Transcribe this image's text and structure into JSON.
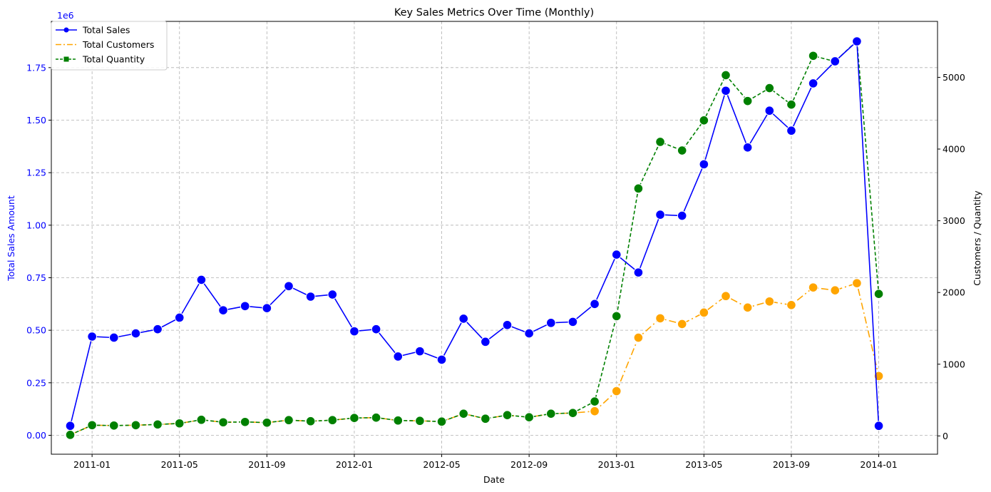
{
  "chart_data": {
    "type": "line",
    "title": "Key Sales Metrics Over Time (Monthly)",
    "xlabel": "Date",
    "ylabel_left": "Total Sales Amount",
    "ylabel_right": "Customers / Quantity",
    "left_scale_label": "1e6",
    "grid": true,
    "legend_position": "top-left",
    "x_ticks": [
      "2011-01",
      "2011-05",
      "2011-09",
      "2012-01",
      "2012-05",
      "2012-09",
      "2013-01",
      "2013-05",
      "2013-09",
      "2014-01"
    ],
    "y_left_ticks": [
      "0.00",
      "0.25",
      "0.50",
      "0.75",
      "1.00",
      "1.25",
      "1.50",
      "1.75"
    ],
    "y_left_tick_values": [
      0,
      0.25,
      0.5,
      0.75,
      1.0,
      1.25,
      1.5,
      1.75
    ],
    "y_right_ticks": [
      "0",
      "1000",
      "2000",
      "3000",
      "4000",
      "5000"
    ],
    "y_right_tick_values": [
      0,
      1000,
      2000,
      3000,
      4000,
      5000
    ],
    "ylim_left": [
      -0.09,
      1.97
    ],
    "ylim_right": [
      -255,
      5780
    ],
    "x": [
      "2010-12",
      "2011-01",
      "2011-02",
      "2011-03",
      "2011-04",
      "2011-05",
      "2011-06",
      "2011-07",
      "2011-08",
      "2011-09",
      "2011-10",
      "2011-11",
      "2011-12",
      "2012-01",
      "2012-02",
      "2012-03",
      "2012-04",
      "2012-05",
      "2012-06",
      "2012-07",
      "2012-08",
      "2012-09",
      "2012-10",
      "2012-11",
      "2012-12",
      "2013-01",
      "2013-02",
      "2013-03",
      "2013-04",
      "2013-05",
      "2013-06",
      "2013-07",
      "2013-08",
      "2013-09",
      "2013-10",
      "2013-11",
      "2013-12",
      "2014-01"
    ],
    "series": [
      {
        "name": "Total Sales",
        "axis": "left",
        "color": "#0000ff",
        "linestyle": "solid",
        "marker": "o",
        "values": [
          0.045,
          0.47,
          0.465,
          0.485,
          0.505,
          0.56,
          0.74,
          0.595,
          0.615,
          0.605,
          0.71,
          0.66,
          0.67,
          0.495,
          0.505,
          0.375,
          0.4,
          0.36,
          0.555,
          0.445,
          0.525,
          0.485,
          0.535,
          0.54,
          0.625,
          0.86,
          0.775,
          1.05,
          1.045,
          1.29,
          1.64,
          1.37,
          1.545,
          1.45,
          1.675,
          1.78,
          1.875,
          0.045
        ]
      },
      {
        "name": "Total Customers",
        "axis": "right",
        "color": "#ffa500",
        "linestyle": "dashdot",
        "marker": "o",
        "values": [
          15,
          150,
          145,
          150,
          160,
          175,
          225,
          190,
          195,
          185,
          220,
          205,
          220,
          250,
          255,
          215,
          210,
          200,
          310,
          240,
          290,
          260,
          310,
          320,
          345,
          625,
          1370,
          1640,
          1560,
          1720,
          1950,
          1790,
          1875,
          1825,
          2070,
          2030,
          2130,
          835
        ]
      },
      {
        "name": "Total Quantity",
        "axis": "right",
        "color": "#008000",
        "linestyle": "dashed",
        "marker": "o",
        "values": [
          15,
          150,
          145,
          150,
          160,
          175,
          225,
          190,
          195,
          185,
          220,
          205,
          220,
          250,
          255,
          215,
          210,
          200,
          310,
          240,
          290,
          260,
          310,
          320,
          480,
          1670,
          3450,
          4100,
          3980,
          4400,
          5030,
          4670,
          4850,
          4620,
          5300,
          5220,
          5510,
          1980
        ]
      }
    ]
  }
}
